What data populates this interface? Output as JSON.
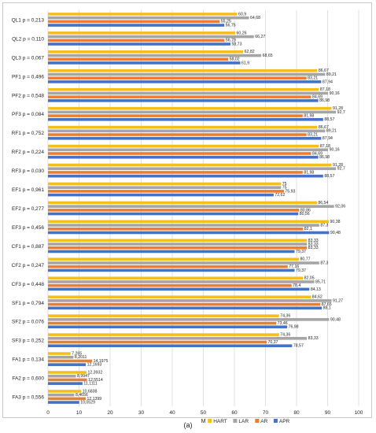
{
  "chart_data": {
    "type": "bar",
    "orientation": "horizontal",
    "categories": [
      "QL1 p = 0,213",
      "QL2 p = 0,110",
      "QL3 p = 0,067",
      "PF1 p = 0,496",
      "PF2 p = 0,548",
      "PF3 p = 0,084",
      "RF1 p = 0,752",
      "RF2 p = 0,224",
      "RF3 p = 0,030",
      "EF1 p = 0,961",
      "EF2 p = 0,277",
      "EF3 p = 0,456",
      "CF1 p = 0,887",
      "CF2 p = 0,247",
      "CF3 p = 0,448",
      "SF1 p = 0,794",
      "SF2 p = 0,076",
      "SF3 p = 0,252",
      "FA1 p = 0,134",
      "FA2 p = 0,600",
      "FA3 p = 0,556"
    ],
    "series": [
      {
        "name": "HART",
        "color": "#f5be1e",
        "values": [
          60.9,
          60.26,
          62.82,
          86.67,
          87.18,
          91.28,
          86.67,
          87.18,
          91.28,
          75,
          86.54,
          90.38,
          83.33,
          80.77,
          82.05,
          84.62,
          74.36,
          74.36,
          7.265,
          12.3932,
          10.6838
        ],
        "labels": [
          "60,9",
          "60,26",
          "62,82",
          "86,67",
          "87,18",
          "91,28",
          "86,67",
          "87,18",
          "91,28",
          "75",
          "86,54",
          "90,38",
          "83,33",
          "80,77",
          "82,05",
          "84,62",
          "74,36",
          "74,36",
          "7,265",
          "12,3932",
          "10,6838"
        ]
      },
      {
        "name": "LAR",
        "color": "#a5a5a5",
        "values": [
          64.68,
          66.27,
          68.65,
          89.21,
          90.16,
          92.7,
          89.21,
          90.16,
          92.7,
          75,
          92.06,
          87.3,
          83.33,
          87.3,
          85.71,
          91.27,
          90.48,
          83.33,
          8.2011,
          8.9947,
          8.4656
        ],
        "labels": [
          "64,68",
          "66,27",
          "68,65",
          "89,21",
          "90,16",
          "92,7",
          "89,21",
          "90,16",
          "92,7",
          "75",
          "92,06",
          "87,3",
          "83,33",
          "87,3",
          "85,71",
          "91,27",
          "90,48",
          "83,33",
          "8,2011",
          "8,9947",
          "8,4656"
        ]
      },
      {
        "name": "AR",
        "color": "#ed7d31",
        "values": [
          55.25,
          56.79,
          58.02,
          83.21,
          84.69,
          81.98,
          83.21,
          84.69,
          81.98,
          75.93,
          80.86,
          82.1,
          83.33,
          77.16,
          78.4,
          87.65,
          73.46,
          70.37,
          14.1975,
          12.5514,
          12.1399
        ],
        "labels": [
          "55,25",
          "56,79",
          "58,02",
          "83,21",
          "84,69",
          "81,98",
          "83,21",
          "84,69",
          "81,98",
          "75,93",
          "80,86",
          "82,1",
          "83,33",
          "77,16",
          "78,4",
          "87,65",
          "73,46",
          "70,37",
          "14,1975",
          "12,5514",
          "12,1399"
        ]
      },
      {
        "name": "APR",
        "color": "#4472c4",
        "values": [
          56.75,
          58.73,
          61.9,
          87.94,
          86.98,
          88.57,
          87.94,
          86.98,
          88.57,
          72.62,
          80.56,
          90.48,
          79.37,
          79.37,
          84.13,
          88.1,
          76.98,
          78.57,
          12.1693,
          11.1111,
          10.0529
        ],
        "labels": [
          "56,75",
          "58,73",
          "61,9",
          "87,94",
          "86,98",
          "88,57",
          "87,94",
          "86,98",
          "88,57",
          "72,62",
          "80,56",
          "90,48",
          "79,37",
          "79,37",
          "84,13",
          "88,1",
          "76,98",
          "78,57",
          "12,1693",
          "11,1111",
          "10,0529"
        ]
      }
    ],
    "xlim": [
      0,
      100
    ],
    "xticks": [
      "0",
      "10",
      "20",
      "30",
      "40",
      "50",
      "60",
      "70",
      "80",
      "90",
      "100"
    ],
    "xlabel": "M",
    "grid": true,
    "legend": "bottom"
  },
  "caption": "(a)"
}
